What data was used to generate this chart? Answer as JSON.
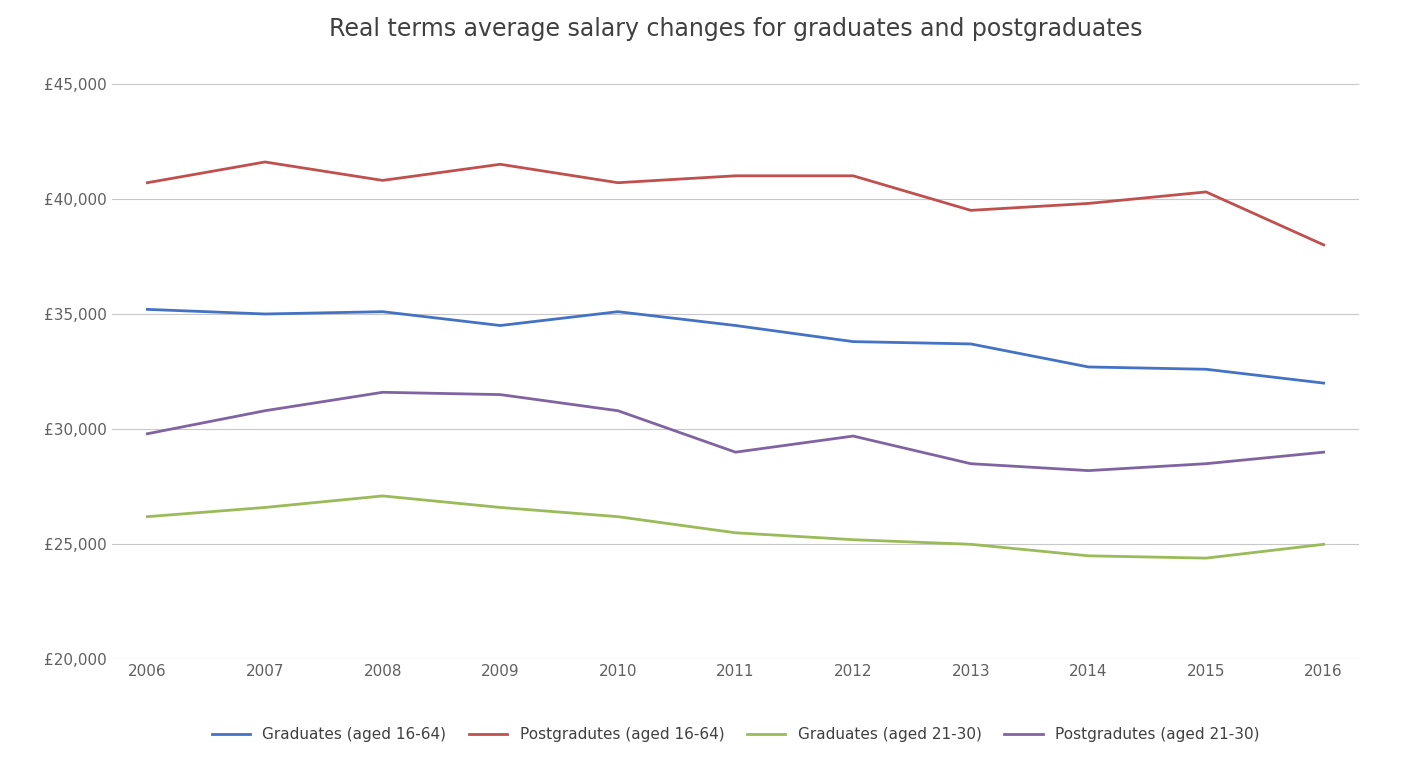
{
  "title": "Real terms average salary changes for graduates and postgraduates",
  "years": [
    2006,
    2007,
    2008,
    2009,
    2010,
    2011,
    2012,
    2013,
    2014,
    2015,
    2016
  ],
  "graduates_16_64": [
    35200,
    35000,
    35100,
    34500,
    35100,
    34500,
    33800,
    33700,
    32700,
    32600,
    32000
  ],
  "postgraduates_16_64": [
    40700,
    41600,
    40800,
    41500,
    40700,
    41000,
    41000,
    39500,
    39800,
    40300,
    38000
  ],
  "graduates_21_30": [
    26200,
    26600,
    27100,
    26600,
    26200,
    25500,
    25200,
    25000,
    24500,
    24400,
    25000
  ],
  "postgraduates_21_30": [
    29800,
    30800,
    31600,
    31500,
    30800,
    29000,
    29700,
    28500,
    28200,
    28500,
    29000
  ],
  "colors": {
    "graduates_16_64": "#4472C4",
    "postgraduates_16_64": "#C0504D",
    "graduates_21_30": "#9BBB59",
    "postgraduates_21_30": "#8064A2"
  },
  "legend_labels": [
    "Graduates (aged 16-64)",
    "Postgradutes (aged 16-64)",
    "Graduates (aged 21-30)",
    "Postgradutes (aged 21-30)"
  ],
  "ylim": [
    20000,
    46000
  ],
  "yticks": [
    20000,
    25000,
    30000,
    35000,
    40000,
    45000
  ],
  "background_color": "#FFFFFF",
  "grid_color": "#C8C8C8",
  "line_width": 2.0,
  "figsize": [
    14.01,
    7.58
  ],
  "dpi": 100
}
